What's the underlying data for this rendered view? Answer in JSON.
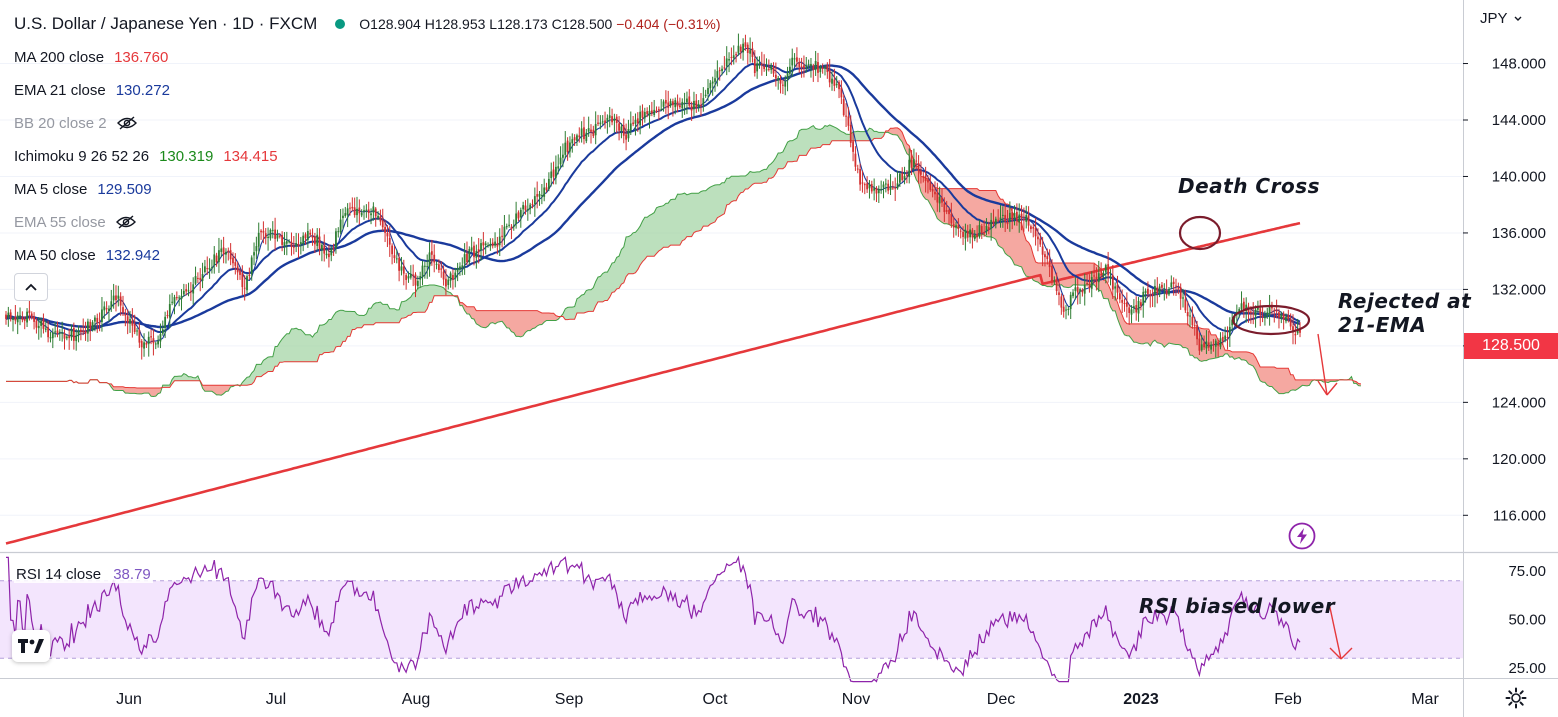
{
  "header": {
    "title": "U.S. Dollar / Japanese Yen · 1D · FXCM",
    "ohlc": {
      "o": "O128.904",
      "h": "H128.953",
      "l": "L128.173",
      "c": "C128.500",
      "change": "−0.404 (−0.31%)"
    }
  },
  "indicators": [
    {
      "label": "MA 200 close",
      "value": "136.760",
      "value2": "",
      "color": "#e5383b",
      "visible": true
    },
    {
      "label": "EMA 21 close",
      "value": "130.272",
      "value2": "",
      "color": "#1a3a9c",
      "visible": true
    },
    {
      "label": "BB 20 close 2",
      "value": "",
      "value2": "",
      "color": "#9598a1",
      "visible": false
    },
    {
      "label": "Ichimoku 9 26 52 26",
      "value": "130.319",
      "value2": "134.415",
      "color": "#1b8a1b",
      "color2": "#e5383b",
      "visible": true
    },
    {
      "label": "MA 5 close",
      "value": "129.509",
      "value2": "",
      "color": "#1a3a9c",
      "visible": true
    },
    {
      "label": "EMA 55 close",
      "value": "",
      "value2": "",
      "color": "#9598a1",
      "visible": false
    },
    {
      "label": "MA 50 close",
      "value": "132.942",
      "value2": "",
      "color": "#1a3a9c",
      "visible": true
    }
  ],
  "rsi_legend": {
    "label": "RSI 14 close",
    "value": "38.79"
  },
  "price_axis": {
    "currency": "JPY",
    "last_price": "128.500"
  },
  "annotations": {
    "death_cross": "Death Cross",
    "rejected_line1": "Rejected at",
    "rejected_line2": "21-EMA",
    "rsi_biased": "RSI biased lower"
  },
  "icons": {
    "collapse": "chevron-up-icon",
    "visibility": "eye-off-icon",
    "logo": "tradingview-logo-icon",
    "settings": "gear-icon",
    "alert": "lightning-icon"
  },
  "chart_data": {
    "type": "candlestick",
    "title": "U.S. Dollar / Japanese Yen · 1D · FXCM",
    "x_ticks": [
      "Jun",
      "Jul",
      "Aug",
      "Sep",
      "Oct",
      "Nov",
      "Dec",
      "2023",
      "Feb",
      "Mar"
    ],
    "y_ticks": [
      "148.000",
      "144.000",
      "140.000",
      "136.000",
      "132.000",
      "128.000",
      "124.000",
      "120.000",
      "116.000"
    ],
    "ylim": [
      113.4,
      152.5
    ],
    "rsi": {
      "y_ticks": [
        "75.00",
        "50.00",
        "25.00"
      ],
      "upper": 70,
      "lower": 30,
      "ylim": [
        18,
        82
      ]
    },
    "colors": {
      "up": "#2e7d32",
      "down": "#d32f2f",
      "ma200": "#e5383b",
      "ma50": "#1a3a9c",
      "ema21": "#1a3a9c",
      "ma5": "#1a3a9c",
      "cloud_bull": "#a5d6a7",
      "cloud_bear": "#f28b82",
      "rsi": "#8e24aa"
    },
    "close_key": [
      [
        0,
        130.3
      ],
      [
        10,
        130.0
      ],
      [
        18,
        129.0
      ],
      [
        25,
        128.5
      ],
      [
        32,
        129.0
      ],
      [
        40,
        130.0
      ],
      [
        48,
        131.5
      ],
      [
        52,
        130.0
      ],
      [
        58,
        128.2
      ],
      [
        64,
        128.2
      ],
      [
        72,
        131.3
      ],
      [
        80,
        132.3
      ],
      [
        88,
        134.0
      ],
      [
        95,
        135.0
      ],
      [
        102,
        132.0
      ],
      [
        108,
        136.0
      ],
      [
        115,
        136.0
      ],
      [
        122,
        135.0
      ],
      [
        130,
        136.0
      ],
      [
        138,
        134.5
      ],
      [
        145,
        137.3
      ],
      [
        152,
        137.8
      ],
      [
        158,
        137.4
      ],
      [
        162,
        136.3
      ],
      [
        168,
        133.5
      ],
      [
        175,
        132.5
      ],
      [
        182,
        134.5
      ],
      [
        188,
        132.3
      ],
      [
        195,
        134.0
      ],
      [
        202,
        135.0
      ],
      [
        208,
        134.8
      ],
      [
        215,
        136.5
      ],
      [
        222,
        138.0
      ],
      [
        230,
        139.0
      ],
      [
        238,
        141.8
      ],
      [
        245,
        143.0
      ],
      [
        252,
        143.3
      ],
      [
        258,
        144.0
      ],
      [
        265,
        143.0
      ],
      [
        272,
        144.5
      ],
      [
        280,
        145.0
      ],
      [
        288,
        145.3
      ],
      [
        296,
        145.0
      ],
      [
        303,
        147.0
      ],
      [
        310,
        148.8
      ],
      [
        316,
        149.5
      ],
      [
        320,
        147.7
      ],
      [
        326,
        147.7
      ],
      [
        332,
        146.8
      ],
      [
        336,
        148.0
      ],
      [
        342,
        148.0
      ],
      [
        350,
        147.5
      ],
      [
        355,
        146.5
      ],
      [
        360,
        143.5
      ],
      [
        365,
        139.5
      ],
      [
        372,
        139.0
      ],
      [
        380,
        139.3
      ],
      [
        387,
        141.0
      ],
      [
        394,
        139.8
      ],
      [
        400,
        138.0
      ],
      [
        408,
        136.0
      ],
      [
        414,
        136.0
      ],
      [
        420,
        136.5
      ],
      [
        428,
        137.0
      ],
      [
        435,
        137.2
      ],
      [
        440,
        136.0
      ],
      [
        446,
        133.5
      ],
      [
        452,
        130.5
      ],
      [
        458,
        132.0
      ],
      [
        464,
        132.5
      ],
      [
        470,
        133.5
      ],
      [
        476,
        131.0
      ],
      [
        482,
        130.5
      ],
      [
        488,
        132.0
      ],
      [
        494,
        131.8
      ],
      [
        500,
        132.5
      ],
      [
        505,
        130.5
      ],
      [
        510,
        128.0
      ],
      [
        516,
        128.0
      ],
      [
        522,
        129.0
      ],
      [
        528,
        131.0
      ],
      [
        534,
        130.5
      ],
      [
        540,
        130.4
      ],
      [
        546,
        130.0
      ],
      [
        550,
        129.3
      ],
      [
        553,
        128.5
      ]
    ]
  }
}
